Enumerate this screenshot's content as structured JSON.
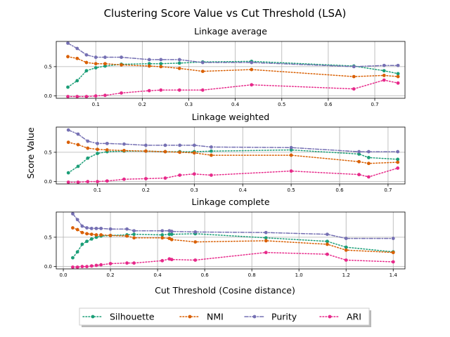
{
  "figure": {
    "title": "Clustering Score Value vs Cut Threshold (LSA)",
    "xlabel": "Cut Threshold (Cosine distance)",
    "ylabel": "Score Value"
  },
  "legend": {
    "placement": "bottom-center",
    "entries": [
      {
        "name": "Silhouette",
        "color": "#1b9e77"
      },
      {
        "name": "NMI",
        "color": "#d95f02"
      },
      {
        "name": "Purity",
        "color": "#7570b3"
      },
      {
        "name": "ARI",
        "color": "#e7298a"
      }
    ]
  },
  "chart_data": [
    {
      "type": "line",
      "title": "Linkage average",
      "grid": "vertical",
      "xlim": [
        0.015,
        0.765
      ],
      "ylim": [
        -0.04,
        0.93
      ],
      "xticks": [
        0.1,
        0.2,
        0.3,
        0.4,
        0.5,
        0.6,
        0.7
      ],
      "yticks": [
        0.0,
        0.5
      ],
      "xticklabels": [
        "0.1",
        "0.2",
        "0.3",
        "0.4",
        "0.5",
        "0.6",
        "0.7"
      ],
      "yticklabels": [
        "0.0",
        "0.5"
      ],
      "x": [
        0.04,
        0.06,
        0.08,
        0.1,
        0.12,
        0.155,
        0.215,
        0.24,
        0.28,
        0.33,
        0.435,
        0.655,
        0.72,
        0.75
      ],
      "series": [
        {
          "name": "Silhouette",
          "values": [
            0.15,
            0.26,
            0.43,
            0.48,
            0.51,
            0.54,
            0.55,
            0.55,
            0.56,
            0.58,
            0.59,
            0.51,
            0.43,
            0.38
          ]
        },
        {
          "name": "NMI",
          "values": [
            0.67,
            0.64,
            0.57,
            0.55,
            0.55,
            0.53,
            0.51,
            0.5,
            0.47,
            0.42,
            0.45,
            0.33,
            0.35,
            0.33
          ]
        },
        {
          "name": "Purity",
          "values": [
            0.9,
            0.81,
            0.7,
            0.66,
            0.66,
            0.66,
            0.62,
            0.62,
            0.62,
            0.57,
            0.57,
            0.5,
            0.52,
            0.52
          ]
        },
        {
          "name": "ARI",
          "values": [
            -0.01,
            -0.01,
            -0.01,
            0.0,
            0.01,
            0.05,
            0.09,
            0.1,
            0.1,
            0.1,
            0.19,
            0.12,
            0.27,
            0.22
          ]
        }
      ]
    },
    {
      "type": "line",
      "title": "Linkage weighted",
      "grid": "vertical",
      "xlim": [
        0.015,
        0.735
      ],
      "ylim": [
        -0.04,
        0.93
      ],
      "xticks": [
        0.1,
        0.2,
        0.3,
        0.4,
        0.5,
        0.6,
        0.7
      ],
      "yticks": [
        0.0,
        0.5
      ],
      "xticklabels": [
        "0.1",
        "0.2",
        "0.3",
        "0.4",
        "0.5",
        "0.6",
        "0.7"
      ],
      "yticklabels": [
        "0.0",
        "0.5"
      ],
      "x": [
        0.04,
        0.06,
        0.08,
        0.1,
        0.12,
        0.155,
        0.2,
        0.24,
        0.27,
        0.3,
        0.335,
        0.5,
        0.64,
        0.66,
        0.72
      ],
      "series": [
        {
          "name": "Silhouette",
          "values": [
            0.15,
            0.26,
            0.4,
            0.48,
            0.51,
            0.52,
            0.52,
            0.51,
            0.51,
            0.51,
            0.52,
            0.54,
            0.47,
            0.41,
            0.38
          ]
        },
        {
          "name": "NMI",
          "values": [
            0.67,
            0.63,
            0.57,
            0.55,
            0.54,
            0.53,
            0.52,
            0.51,
            0.5,
            0.49,
            0.45,
            0.45,
            0.34,
            0.31,
            0.33
          ]
        },
        {
          "name": "Purity",
          "values": [
            0.88,
            0.81,
            0.69,
            0.65,
            0.65,
            0.64,
            0.62,
            0.62,
            0.62,
            0.62,
            0.59,
            0.58,
            0.51,
            0.51,
            0.51
          ]
        },
        {
          "name": "ARI",
          "values": [
            -0.01,
            -0.01,
            0.0,
            0.0,
            0.01,
            0.04,
            0.05,
            0.06,
            0.11,
            0.13,
            0.11,
            0.18,
            0.12,
            0.08,
            0.23
          ]
        }
      ]
    },
    {
      "type": "line",
      "title": "Linkage complete",
      "grid": "vertical",
      "xlim": [
        -0.03,
        1.45
      ],
      "ylim": [
        -0.04,
        0.93
      ],
      "xticks": [
        0.0,
        0.2,
        0.4,
        0.6,
        0.8,
        1.0,
        1.2,
        1.4
      ],
      "yticks": [
        0.0,
        0.5
      ],
      "xticklabels": [
        "0.0",
        "0.2",
        "0.4",
        "0.6",
        "0.8",
        "1.0",
        "1.2",
        "1.4"
      ],
      "yticklabels": [
        "0.0",
        "0.5"
      ],
      "x": [
        0.04,
        0.06,
        0.08,
        0.1,
        0.12,
        0.14,
        0.16,
        0.2,
        0.27,
        0.3,
        0.42,
        0.45,
        0.46,
        0.56,
        0.86,
        1.12,
        1.2,
        1.4
      ],
      "series": [
        {
          "name": "Silhouette",
          "values": [
            0.15,
            0.25,
            0.38,
            0.43,
            0.47,
            0.5,
            0.52,
            0.53,
            0.54,
            0.55,
            0.54,
            0.55,
            0.55,
            0.56,
            0.49,
            0.43,
            0.33,
            0.25
          ]
        },
        {
          "name": "NMI",
          "values": [
            0.66,
            0.63,
            0.58,
            0.56,
            0.55,
            0.54,
            0.54,
            0.53,
            0.52,
            0.49,
            0.49,
            0.48,
            0.46,
            0.42,
            0.44,
            0.38,
            0.28,
            0.24
          ]
        },
        {
          "name": "Purity",
          "values": [
            0.9,
            0.8,
            0.69,
            0.66,
            0.65,
            0.65,
            0.65,
            0.64,
            0.64,
            0.61,
            0.61,
            0.61,
            0.6,
            0.59,
            0.58,
            0.55,
            0.48,
            0.48
          ]
        },
        {
          "name": "ARI",
          "values": [
            -0.01,
            -0.01,
            0.0,
            0.0,
            0.01,
            0.02,
            0.03,
            0.05,
            0.06,
            0.06,
            0.1,
            0.13,
            0.12,
            0.11,
            0.24,
            0.21,
            0.11,
            0.08
          ]
        }
      ]
    }
  ]
}
